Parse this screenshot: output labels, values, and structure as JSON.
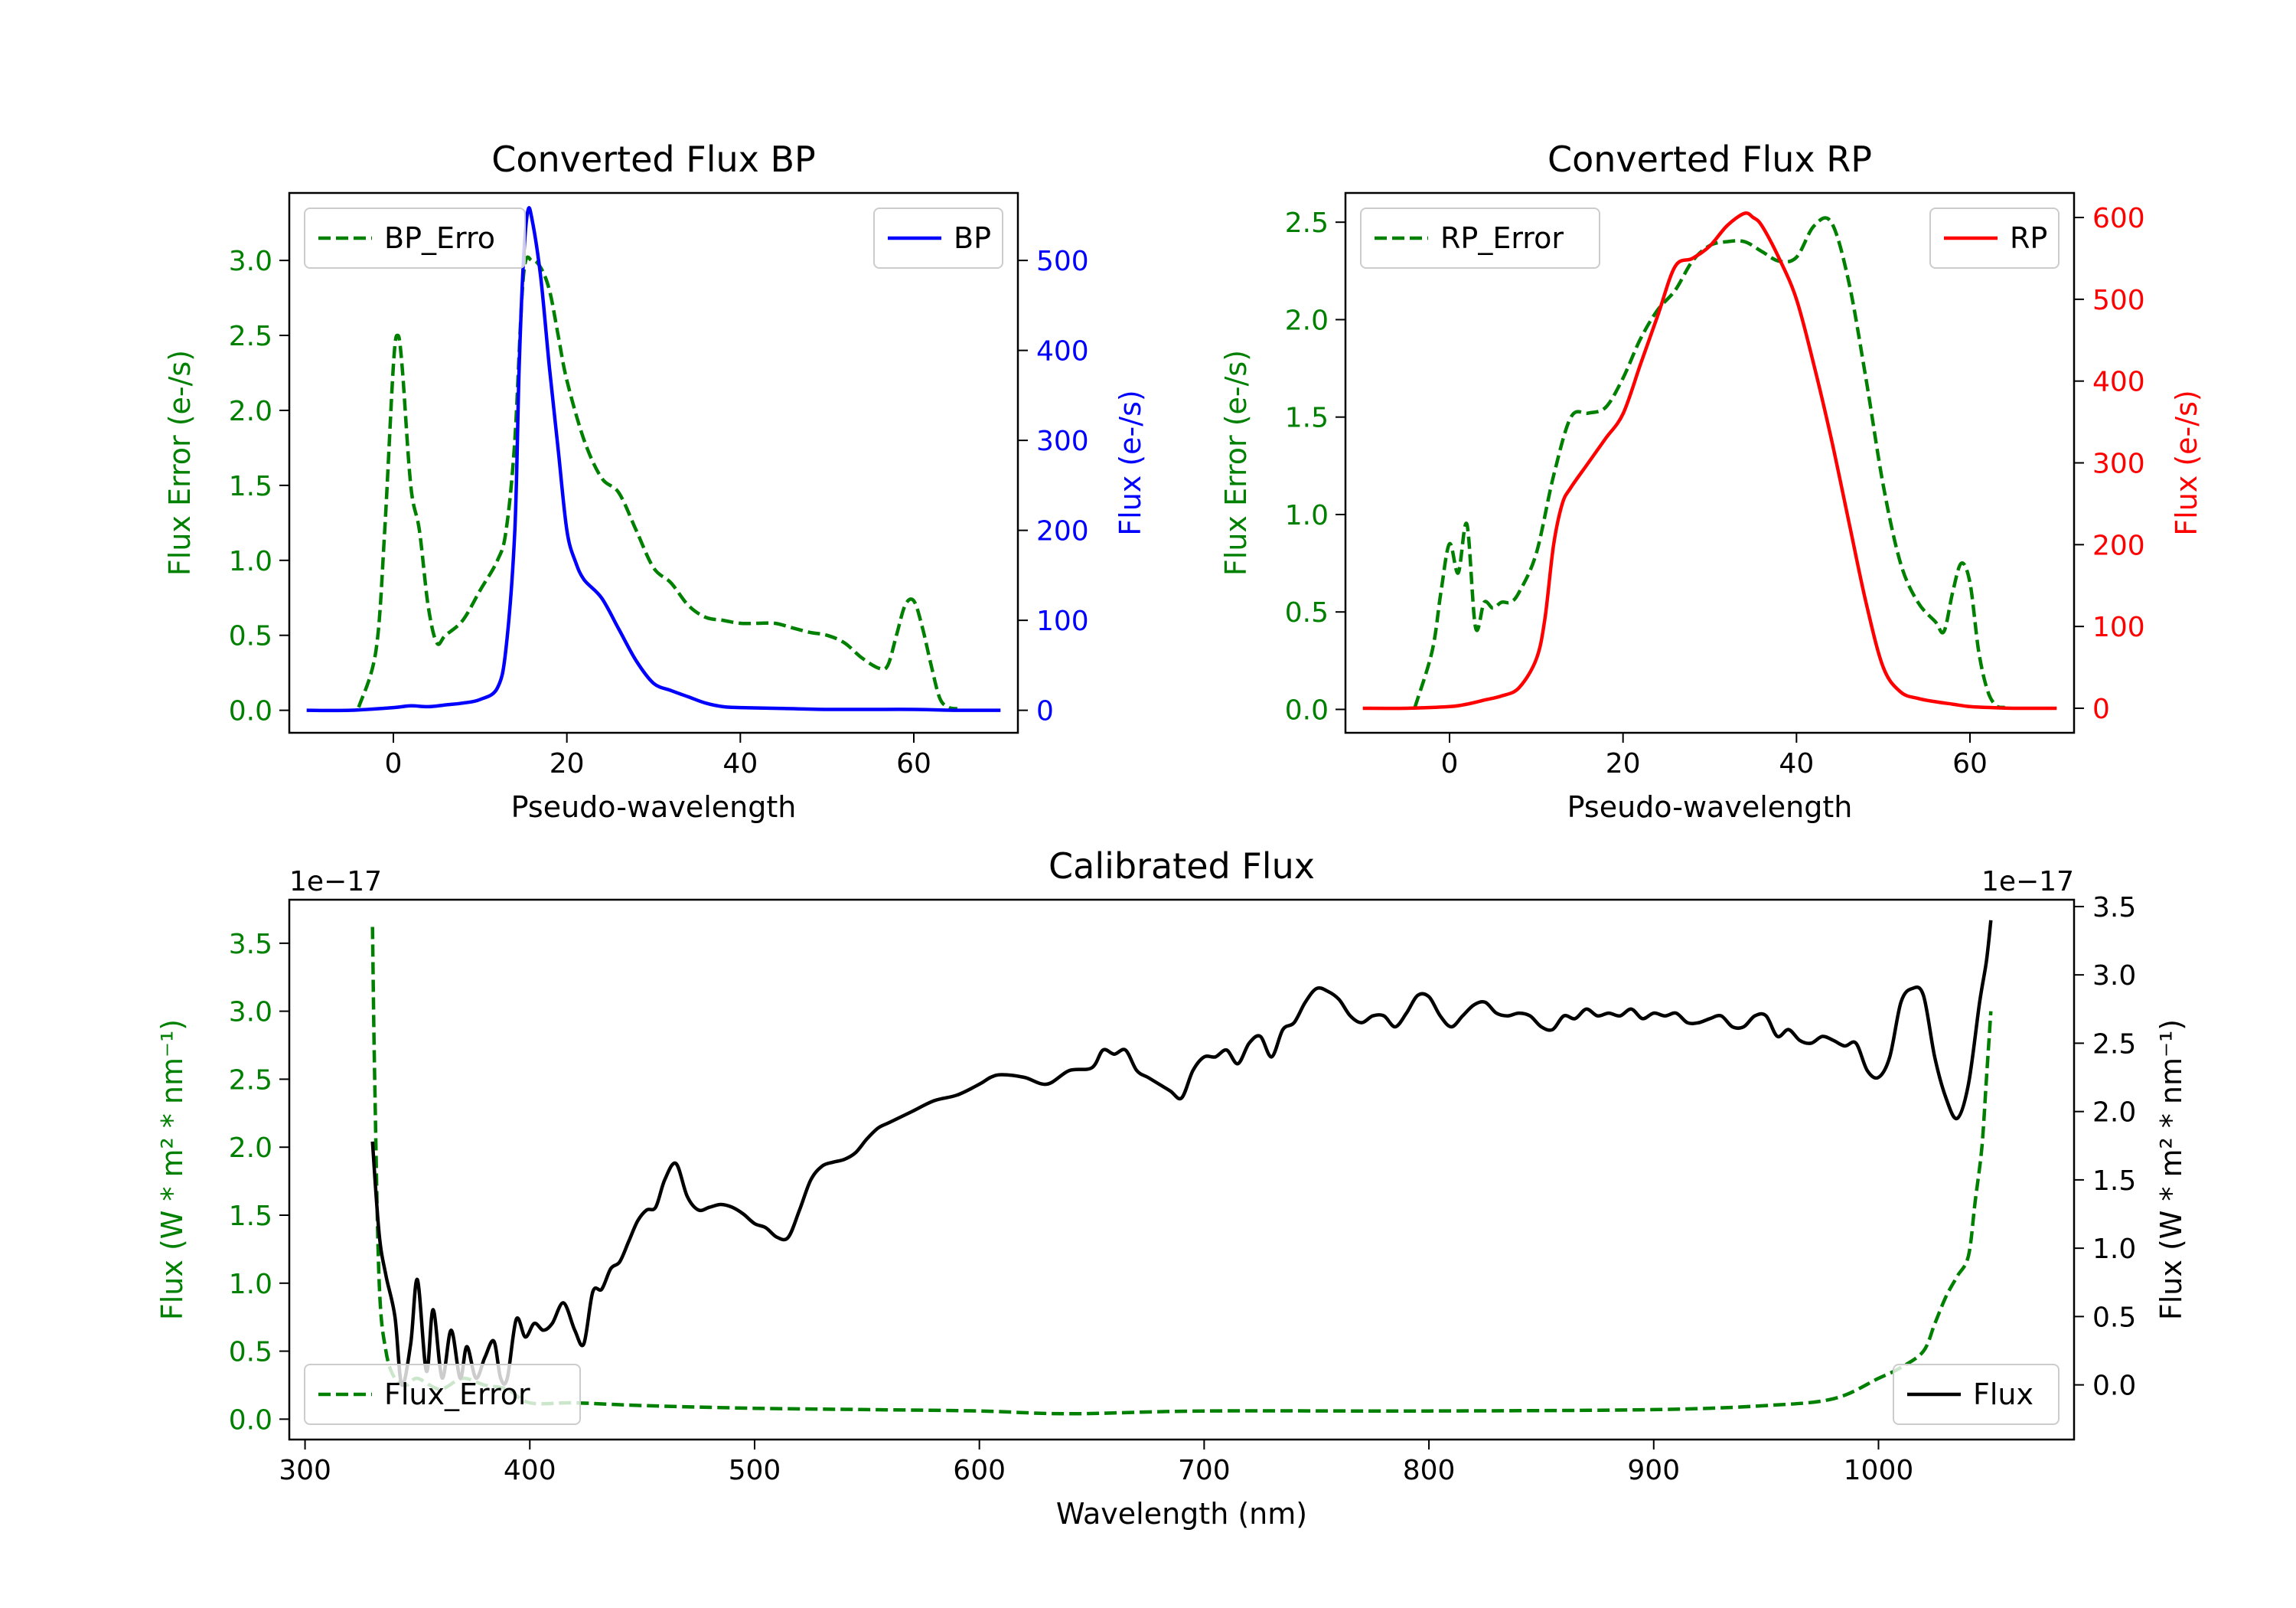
{
  "chart_data": [
    {
      "type": "line",
      "title": "Converted Flux BP",
      "xlabel": "Pseudo-wavelength",
      "xlim": [
        -12,
        72
      ],
      "xticks": [
        0,
        20,
        40,
        60
      ],
      "left_axis": {
        "label": "Flux Error (e-/s)",
        "color": "#008000",
        "lim": [
          -0.15,
          3.45
        ],
        "ticks": [
          "0.0",
          "0.5",
          "1.0",
          "1.5",
          "2.0",
          "2.5",
          "3.0"
        ]
      },
      "right_axis": {
        "label": "Flux (e-/s)",
        "color": "#0000ff",
        "lim": [
          -25,
          575
        ],
        "ticks": [
          "0",
          "100",
          "200",
          "300",
          "400",
          "500"
        ]
      },
      "series": [
        {
          "name": "BP_Error",
          "legend": "BP_Erro",
          "axis": "left",
          "style": "dashed",
          "color": "#008000",
          "x": [
            -4,
            -2,
            -1,
            0,
            0.5,
            1,
            2,
            3,
            4,
            5,
            6,
            8,
            10,
            12,
            13,
            14,
            15,
            16,
            17,
            18,
            19,
            20,
            22,
            24,
            26,
            28,
            30,
            32,
            34,
            36,
            38,
            40,
            42,
            44,
            46,
            48,
            50,
            52,
            54,
            56,
            57,
            58,
            59,
            60,
            61,
            62,
            63,
            64,
            65
          ],
          "y": [
            0.02,
            0.4,
            1.2,
            2.3,
            2.5,
            2.3,
            1.5,
            1.2,
            0.7,
            0.45,
            0.5,
            0.6,
            0.8,
            1.0,
            1.2,
            1.8,
            2.9,
            3.0,
            2.95,
            2.8,
            2.5,
            2.2,
            1.8,
            1.55,
            1.45,
            1.2,
            0.95,
            0.85,
            0.7,
            0.62,
            0.6,
            0.58,
            0.58,
            0.58,
            0.55,
            0.52,
            0.5,
            0.45,
            0.35,
            0.28,
            0.3,
            0.5,
            0.7,
            0.73,
            0.55,
            0.3,
            0.08,
            0.02,
            0.01
          ]
        },
        {
          "name": "BP",
          "legend": "BP",
          "axis": "right",
          "style": "solid",
          "color": "#0000ff",
          "x": [
            -10,
            -5,
            0,
            2,
            4,
            6,
            8,
            10,
            12,
            13,
            14,
            14.5,
            15,
            15.5,
            16,
            17,
            18,
            19,
            20,
            21,
            22,
            24,
            26,
            28,
            30,
            32,
            34,
            36,
            38,
            40,
            45,
            50,
            55,
            60,
            65,
            70
          ],
          "y": [
            0,
            0,
            3,
            5,
            4,
            6,
            8,
            12,
            25,
            70,
            200,
            380,
            500,
            555,
            545,
            480,
            380,
            290,
            200,
            165,
            145,
            125,
            90,
            55,
            30,
            22,
            15,
            8,
            4,
            3,
            2,
            1,
            1,
            1,
            0,
            0
          ]
        }
      ],
      "legend_positions": [
        "upper-left",
        "upper-right"
      ]
    },
    {
      "type": "line",
      "title": "Converted Flux RP",
      "xlabel": "Pseudo-wavelength",
      "xlim": [
        -12,
        72
      ],
      "xticks": [
        0,
        20,
        40,
        60
      ],
      "left_axis": {
        "label": "Flux Error (e-/s)",
        "color": "#008000",
        "lim": [
          -0.12,
          2.65
        ],
        "ticks": [
          "0.0",
          "0.5",
          "1.0",
          "1.5",
          "2.0",
          "2.5"
        ]
      },
      "right_axis": {
        "label": "Flux (e-/s)",
        "color": "#ff0000",
        "lim": [
          -30,
          630
        ],
        "ticks": [
          "0",
          "100",
          "200",
          "300",
          "400",
          "500",
          "600"
        ]
      },
      "series": [
        {
          "name": "RP_Error",
          "legend": "RP_Error",
          "axis": "left",
          "style": "dashed",
          "color": "#008000",
          "x": [
            -4,
            -2,
            -1,
            0,
            1,
            2,
            3,
            4,
            5,
            6,
            7,
            8,
            10,
            12,
            14,
            16,
            18,
            20,
            22,
            24,
            26,
            28,
            30,
            32,
            34,
            36,
            38,
            40,
            42,
            44,
            46,
            48,
            50,
            52,
            54,
            56,
            57,
            58,
            59,
            60,
            61,
            62,
            63,
            64
          ],
          "y": [
            0.01,
            0.3,
            0.6,
            0.85,
            0.7,
            0.95,
            0.42,
            0.55,
            0.52,
            0.55,
            0.55,
            0.6,
            0.8,
            1.2,
            1.5,
            1.52,
            1.55,
            1.7,
            1.9,
            2.05,
            2.15,
            2.3,
            2.38,
            2.4,
            2.4,
            2.35,
            2.3,
            2.32,
            2.48,
            2.5,
            2.2,
            1.7,
            1.15,
            0.75,
            0.55,
            0.45,
            0.4,
            0.6,
            0.75,
            0.65,
            0.3,
            0.1,
            0.02,
            0.01
          ]
        },
        {
          "name": "RP",
          "legend": "RP",
          "axis": "right",
          "style": "solid",
          "color": "#ff0000",
          "x": [
            -10,
            -5,
            0,
            2,
            4,
            6,
            8,
            10,
            11,
            12,
            13,
            14,
            16,
            18,
            20,
            22,
            24,
            26,
            28,
            30,
            32,
            34,
            35,
            36,
            38,
            40,
            42,
            44,
            46,
            48,
            50,
            52,
            54,
            56,
            58,
            60,
            62,
            65,
            70
          ],
          "y": [
            0,
            0,
            2,
            5,
            10,
            15,
            25,
            60,
            110,
            200,
            250,
            270,
            300,
            330,
            360,
            420,
            480,
            540,
            550,
            565,
            590,
            605,
            600,
            590,
            550,
            500,
            420,
            330,
            230,
            130,
            50,
            20,
            12,
            8,
            5,
            2,
            1,
            0,
            0
          ]
        }
      ],
      "legend_positions": [
        "upper-left",
        "upper-right"
      ]
    },
    {
      "type": "line",
      "title": "Calibrated Flux",
      "xlabel": "Wavelength (nm)",
      "xlim": [
        293,
        1087
      ],
      "xticks": [
        300,
        400,
        500,
        600,
        700,
        800,
        900,
        1000
      ],
      "left_axis": {
        "label": "Flux (W * m² * nm⁻¹)",
        "color": "#008000",
        "offset_text": "1e−17",
        "lim": [
          -0.15,
          3.82
        ],
        "ticks": [
          "0.0",
          "0.5",
          "1.0",
          "1.5",
          "2.0",
          "2.5",
          "3.0",
          "3.5"
        ]
      },
      "right_axis": {
        "label": "Flux (W * m² * nm⁻¹)",
        "color": "#000000",
        "offset_text": "1e−17",
        "lim": [
          -0.4,
          3.55
        ],
        "ticks": [
          "0.0",
          "0.5",
          "1.0",
          "1.5",
          "2.0",
          "2.5",
          "3.0",
          "3.5"
        ]
      },
      "series": [
        {
          "name": "Flux_Error",
          "legend": "Flux_Error",
          "axis": "left",
          "style": "dashed",
          "color": "#008000",
          "x": [
            330,
            331,
            333,
            336,
            340,
            345,
            350,
            360,
            370,
            380,
            390,
            400,
            420,
            450,
            500,
            550,
            600,
            640,
            700,
            800,
            900,
            950,
            980,
            1000,
            1010,
            1020,
            1025,
            1030,
            1035,
            1040,
            1043,
            1046,
            1048,
            1050
          ],
          "y": [
            3.62,
            2.5,
            1.0,
            0.5,
            0.3,
            0.25,
            0.3,
            0.22,
            0.3,
            0.25,
            0.22,
            0.12,
            0.12,
            0.1,
            0.08,
            0.07,
            0.06,
            0.04,
            0.06,
            0.06,
            0.07,
            0.1,
            0.15,
            0.3,
            0.38,
            0.5,
            0.7,
            0.9,
            1.05,
            1.2,
            1.6,
            2.0,
            2.5,
            3.0
          ]
        },
        {
          "name": "Flux",
          "legend": "Flux",
          "axis": "right",
          "style": "solid",
          "color": "#000000",
          "x": [
            330,
            333,
            336,
            340,
            343,
            347,
            350,
            354,
            357,
            361,
            365,
            369,
            372,
            376,
            380,
            384,
            387,
            390,
            394,
            398,
            402,
            406,
            410,
            415,
            420,
            424,
            428,
            432,
            436,
            440,
            444,
            448,
            452,
            456,
            460,
            465,
            470,
            475,
            480,
            485,
            490,
            495,
            500,
            505,
            510,
            515,
            520,
            525,
            530,
            535,
            540,
            545,
            550,
            555,
            560,
            570,
            580,
            590,
            600,
            605,
            610,
            620,
            630,
            640,
            650,
            655,
            660,
            665,
            670,
            675,
            680,
            685,
            690,
            695,
            700,
            705,
            710,
            715,
            720,
            725,
            730,
            735,
            740,
            745,
            750,
            755,
            760,
            765,
            770,
            775,
            780,
            785,
            790,
            795,
            800,
            805,
            810,
            815,
            820,
            825,
            830,
            835,
            840,
            845,
            850,
            855,
            860,
            865,
            870,
            875,
            880,
            885,
            890,
            895,
            900,
            905,
            910,
            915,
            920,
            925,
            930,
            935,
            940,
            945,
            950,
            955,
            960,
            965,
            970,
            975,
            980,
            985,
            990,
            995,
            1000,
            1005,
            1010,
            1015,
            1020,
            1025,
            1030,
            1035,
            1040,
            1045,
            1048,
            1050
          ],
          "y": [
            1.78,
            1.1,
            0.8,
            0.5,
            0.0,
            0.3,
            0.77,
            0.1,
            0.55,
            0.05,
            0.4,
            0.05,
            0.28,
            0.05,
            0.2,
            0.32,
            0.05,
            0.05,
            0.48,
            0.35,
            0.45,
            0.4,
            0.45,
            0.6,
            0.4,
            0.3,
            0.68,
            0.7,
            0.85,
            0.9,
            1.05,
            1.2,
            1.28,
            1.3,
            1.5,
            1.62,
            1.38,
            1.28,
            1.3,
            1.32,
            1.3,
            1.25,
            1.18,
            1.15,
            1.08,
            1.08,
            1.28,
            1.5,
            1.6,
            1.63,
            1.65,
            1.7,
            1.8,
            1.88,
            1.92,
            2.0,
            2.08,
            2.12,
            2.2,
            2.25,
            2.27,
            2.25,
            2.2,
            2.3,
            2.32,
            2.45,
            2.42,
            2.45,
            2.3,
            2.25,
            2.2,
            2.15,
            2.1,
            2.3,
            2.4,
            2.4,
            2.45,
            2.35,
            2.5,
            2.55,
            2.4,
            2.6,
            2.65,
            2.8,
            2.9,
            2.88,
            2.82,
            2.7,
            2.65,
            2.7,
            2.7,
            2.62,
            2.72,
            2.85,
            2.84,
            2.7,
            2.62,
            2.7,
            2.78,
            2.8,
            2.72,
            2.7,
            2.72,
            2.7,
            2.62,
            2.6,
            2.7,
            2.68,
            2.75,
            2.7,
            2.72,
            2.7,
            2.75,
            2.68,
            2.72,
            2.7,
            2.72,
            2.65,
            2.65,
            2.68,
            2.7,
            2.62,
            2.62,
            2.7,
            2.7,
            2.55,
            2.6,
            2.52,
            2.5,
            2.55,
            2.52,
            2.48,
            2.5,
            2.3,
            2.25,
            2.4,
            2.8,
            2.9,
            2.85,
            2.4,
            2.1,
            1.95,
            2.2,
            2.8,
            3.1,
            3.4
          ]
        }
      ],
      "legend_positions": [
        "lower-left",
        "lower-right"
      ]
    }
  ]
}
